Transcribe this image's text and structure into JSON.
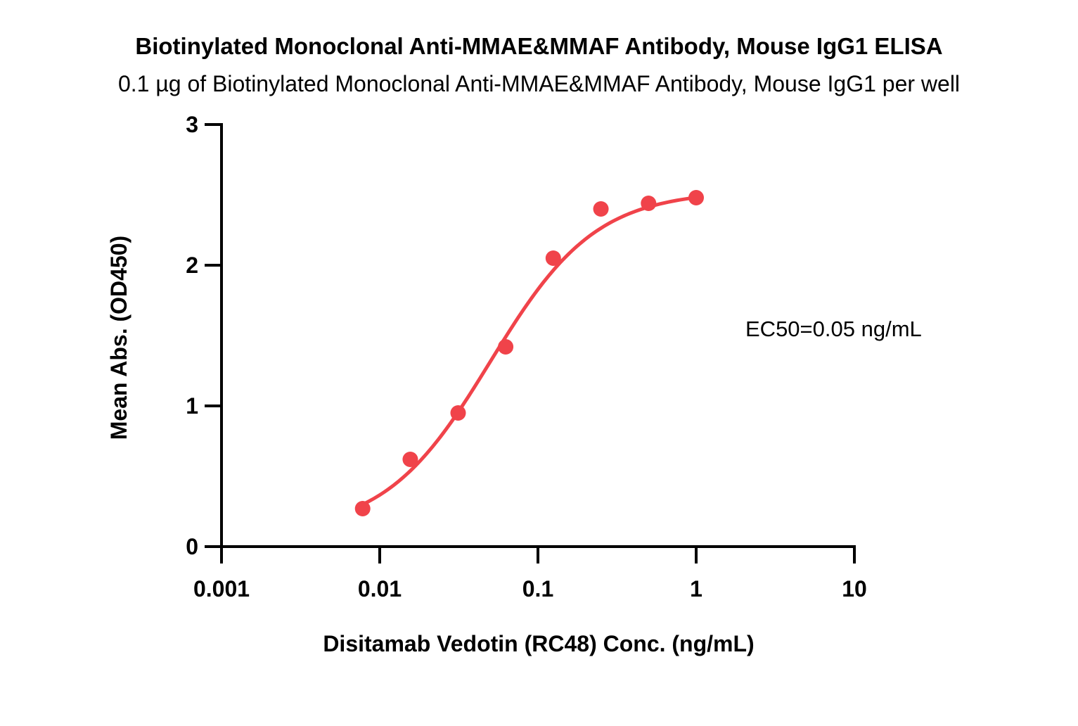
{
  "chart_data": {
    "type": "scatter",
    "title": "Biotinylated Monoclonal Anti-MMAE&MMAF Antibody, Mouse IgG1 ELISA",
    "subtitle": "0.1 µg of Biotinylated Monoclonal Anti-MMAE&MMAF Antibody, Mouse IgG1 per well",
    "xlabel": "Disitamab Vedotin (RC48) Conc. (ng/mL)",
    "ylabel": "Mean Abs. (OD450)",
    "x_scale": "log",
    "xlim": [
      0.001,
      10
    ],
    "ylim": [
      0,
      3
    ],
    "x_ticks": [
      0.001,
      0.01,
      0.1,
      1,
      10
    ],
    "x_tick_labels": [
      "0.001",
      "0.01",
      "0.1",
      "1",
      "10"
    ],
    "y_ticks": [
      0,
      1,
      2,
      3
    ],
    "y_tick_labels": [
      "0",
      "1",
      "2",
      "3"
    ],
    "grid": false,
    "color": "#f0434a",
    "series": [
      {
        "points": [
          {
            "x": 0.0078,
            "y": 0.27
          },
          {
            "x": 0.0156,
            "y": 0.62
          },
          {
            "x": 0.0313,
            "y": 0.95
          },
          {
            "x": 0.0625,
            "y": 1.42
          },
          {
            "x": 0.125,
            "y": 2.05
          },
          {
            "x": 0.25,
            "y": 2.4
          },
          {
            "x": 0.5,
            "y": 2.44
          },
          {
            "x": 1.0,
            "y": 2.48
          }
        ],
        "fit": {
          "model": "4PL",
          "bottom": 0.1,
          "top": 2.53,
          "ec50": 0.05,
          "hill": 1.3
        }
      }
    ],
    "annotation": "EC50=0.05 ng/mL"
  }
}
